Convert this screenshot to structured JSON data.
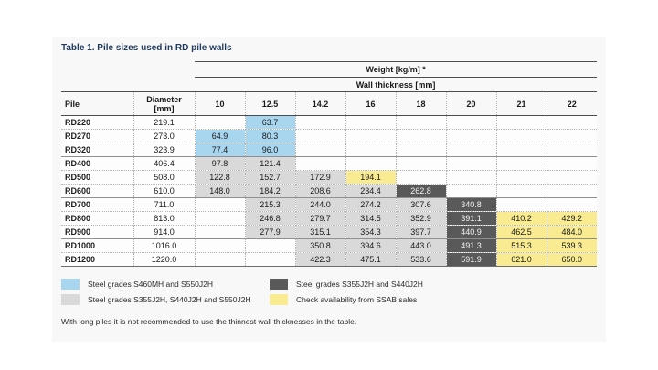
{
  "title": "Table 1. Pile sizes used in RD pile walls",
  "colors": {
    "blue": "#a9d6ef",
    "gray": "#d9d9d9",
    "dark": "#595959",
    "dark_text": "#f2f2f2",
    "yellow": "#f8eb92",
    "title": "#1e3a5f"
  },
  "table": {
    "weight_header": "Weight [kg/m] *",
    "thickness_header": "Wall thickness [mm]",
    "pile_header": "Pile",
    "diameter_header_line1": "Diameter",
    "diameter_header_line2": "[mm]",
    "thickness_cols": [
      "10",
      "12.5",
      "14.2",
      "16",
      "18",
      "20",
      "21",
      "22"
    ],
    "rows": [
      {
        "pile": "RD220",
        "diameter": "219.1",
        "group_end": false,
        "cells": [
          null,
          {
            "v": "63.7",
            "c": "blue"
          },
          null,
          null,
          null,
          null,
          null,
          null
        ]
      },
      {
        "pile": "RD270",
        "diameter": "273.0",
        "group_end": false,
        "cells": [
          {
            "v": "64.9",
            "c": "blue"
          },
          {
            "v": "80.3",
            "c": "blue"
          },
          null,
          null,
          null,
          null,
          null,
          null
        ]
      },
      {
        "pile": "RD320",
        "diameter": "323.9",
        "group_end": true,
        "cells": [
          {
            "v": "77.4",
            "c": "blue"
          },
          {
            "v": "96.0",
            "c": "blue"
          },
          null,
          null,
          null,
          null,
          null,
          null
        ]
      },
      {
        "pile": "RD400",
        "diameter": "406.4",
        "group_end": false,
        "cells": [
          {
            "v": "97.8",
            "c": "gray"
          },
          {
            "v": "121.4",
            "c": "gray"
          },
          null,
          null,
          null,
          null,
          null,
          null
        ]
      },
      {
        "pile": "RD500",
        "diameter": "508.0",
        "group_end": false,
        "cells": [
          {
            "v": "122.8",
            "c": "gray"
          },
          {
            "v": "152.7",
            "c": "gray"
          },
          {
            "v": "172.9",
            "c": "gray"
          },
          {
            "v": "194.1",
            "c": "yellow"
          },
          null,
          null,
          null,
          null
        ]
      },
      {
        "pile": "RD600",
        "diameter": "610.0",
        "group_end": true,
        "cells": [
          {
            "v": "148.0",
            "c": "gray"
          },
          {
            "v": "184.2",
            "c": "gray"
          },
          {
            "v": "208.6",
            "c": "gray"
          },
          {
            "v": "234.4",
            "c": "gray"
          },
          {
            "v": "262.8",
            "c": "dark"
          },
          null,
          null,
          null
        ]
      },
      {
        "pile": "RD700",
        "diameter": "711.0",
        "group_end": false,
        "cells": [
          null,
          {
            "v": "215.3",
            "c": "gray"
          },
          {
            "v": "244.0",
            "c": "gray"
          },
          {
            "v": "274.2",
            "c": "gray"
          },
          {
            "v": "307.6",
            "c": "gray"
          },
          {
            "v": "340.8",
            "c": "dark"
          },
          null,
          null
        ]
      },
      {
        "pile": "RD800",
        "diameter": "813.0",
        "group_end": false,
        "cells": [
          null,
          {
            "v": "246.8",
            "c": "gray"
          },
          {
            "v": "279.7",
            "c": "gray"
          },
          {
            "v": "314.5",
            "c": "gray"
          },
          {
            "v": "352.9",
            "c": "gray"
          },
          {
            "v": "391.1",
            "c": "dark"
          },
          {
            "v": "410.2",
            "c": "yellow"
          },
          {
            "v": "429.2",
            "c": "yellow"
          }
        ]
      },
      {
        "pile": "RD900",
        "diameter": "914.0",
        "group_end": true,
        "cells": [
          null,
          {
            "v": "277.9",
            "c": "gray"
          },
          {
            "v": "315.1",
            "c": "gray"
          },
          {
            "v": "354.3",
            "c": "gray"
          },
          {
            "v": "397.7",
            "c": "gray"
          },
          {
            "v": "440.9",
            "c": "dark"
          },
          {
            "v": "462.5",
            "c": "yellow"
          },
          {
            "v": "484.0",
            "c": "yellow"
          }
        ]
      },
      {
        "pile": "RD1000",
        "diameter": "1016.0",
        "group_end": false,
        "cells": [
          null,
          null,
          {
            "v": "350.8",
            "c": "gray"
          },
          {
            "v": "394.6",
            "c": "gray"
          },
          {
            "v": "443.0",
            "c": "gray"
          },
          {
            "v": "491.3",
            "c": "dark"
          },
          {
            "v": "515.3",
            "c": "yellow"
          },
          {
            "v": "539.3",
            "c": "yellow"
          }
        ]
      },
      {
        "pile": "RD1200",
        "diameter": "1220.0",
        "group_end": false,
        "cells": [
          null,
          null,
          {
            "v": "422.3",
            "c": "gray"
          },
          {
            "v": "475.1",
            "c": "gray"
          },
          {
            "v": "533.6",
            "c": "gray"
          },
          {
            "v": "591.9",
            "c": "dark"
          },
          {
            "v": "621.0",
            "c": "yellow"
          },
          {
            "v": "650.0",
            "c": "yellow"
          }
        ]
      }
    ]
  },
  "legend": {
    "left": [
      {
        "color": "blue",
        "label": "Steel grades S460MH and S550J2H"
      },
      {
        "color": "gray",
        "label": "Steel grades S355J2H, S440J2H and S550J2H"
      }
    ],
    "right": [
      {
        "color": "dark",
        "label": "Steel grades S355J2H and S440J2H"
      },
      {
        "color": "yellow",
        "label": "Check availability  from SSAB sales"
      }
    ]
  },
  "footnote": "With long piles it is not recommended to use the thinnest wall thicknesses in the table."
}
